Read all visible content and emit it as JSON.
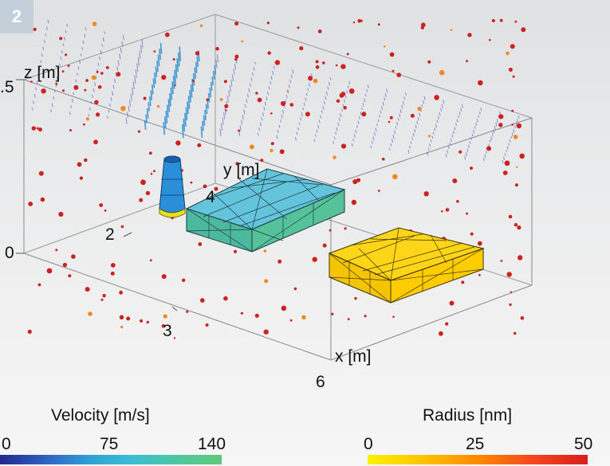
{
  "figure": {
    "badge": "2",
    "axes": {
      "z_label": "z [m]",
      "y_label": "y [m]",
      "x_label": "x [m]",
      "z_ticks": [
        ".5",
        "0"
      ],
      "y_ticks": [
        "2",
        "4"
      ],
      "x_ticks": [
        "3",
        "6"
      ]
    }
  },
  "legend_velocity": {
    "title": "Velocity [m/s]",
    "ticks": [
      "0",
      "75",
      "140"
    ],
    "colors": [
      "#1f2a8c",
      "#2f5fc1",
      "#2f9fd6",
      "#3bbfcf",
      "#4ec7a0",
      "#62c97a"
    ]
  },
  "legend_radius": {
    "title": "Radius [nm]",
    "ticks": [
      "0",
      "25",
      "50"
    ],
    "colors": [
      "#fff200",
      "#ffc400",
      "#ff8a00",
      "#f5461e",
      "#d81e1e"
    ]
  },
  "colors": {
    "box_cyan": "#64c4dc",
    "box_teal": "#52bd9d",
    "box_yellow": "#ffd400",
    "particle_red": "#cc2222",
    "vector_blue": "#3340b0"
  }
}
